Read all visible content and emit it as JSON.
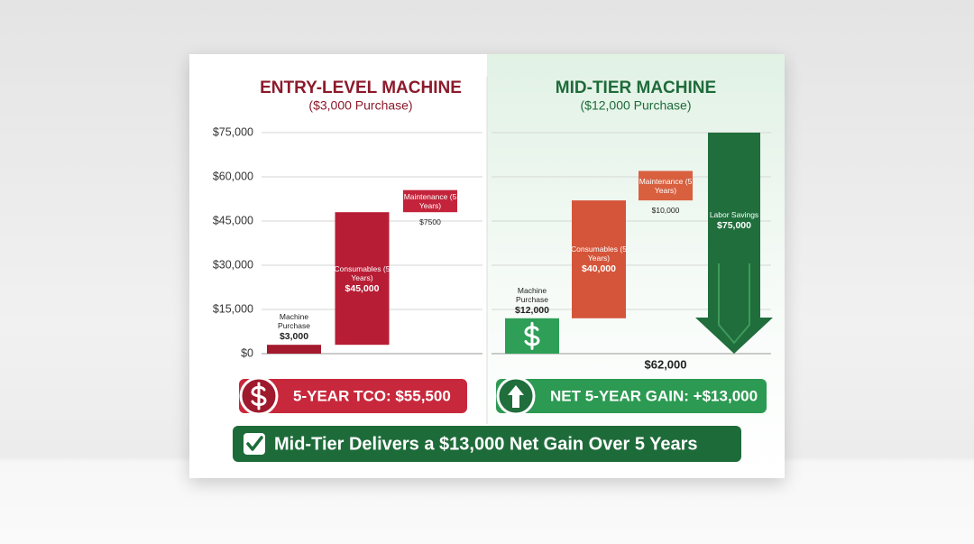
{
  "chart_data": [
    {
      "type": "waterfall",
      "title": "ENTRY-LEVEL MACHINE",
      "subtitle": "($3,000 Purchase)",
      "title_color": "#8b1a2b",
      "categories": [
        "Machine Purchase",
        "Consumables (5 Years)",
        "Maintenance (5 Years)"
      ],
      "values": [
        3000,
        45000,
        7500
      ],
      "value_labels": [
        "$3,000",
        "$45,000",
        "$7500"
      ],
      "colors": [
        "#a3192d",
        "#b81d36",
        "#c3243b"
      ],
      "ylim": [
        0,
        75000
      ],
      "yticks": [
        {
          "value": 0,
          "label": "$0"
        },
        {
          "value": 15000,
          "label": "$15,000"
        },
        {
          "value": 30000,
          "label": "$30,000"
        },
        {
          "value": 45000,
          "label": "$45,000"
        },
        {
          "value": 60000,
          "label": "$60,000"
        },
        {
          "value": 75000,
          "label": "$75,000"
        }
      ],
      "grid": true,
      "summary": "5-YEAR TCO: $55,500",
      "summary_color": "#c8283c"
    },
    {
      "type": "waterfall",
      "title": "MID-TIER MACHINE",
      "subtitle": "($12,000 Purchase)",
      "title_color": "#1e6b3a",
      "categories": [
        "Machine Purchase",
        "Consumables (5 Years)",
        "Maintenance (5 Years)"
      ],
      "values": [
        12000,
        40000,
        10000
      ],
      "value_labels": [
        "$12,000",
        "$40,000",
        "$10,000"
      ],
      "colors": [
        "#2f9e57",
        "#d4553a",
        "#d8603f"
      ],
      "savings": {
        "name": "Labor Savings",
        "value": 75000,
        "value_label": "$75,000",
        "color": "#1f6e3c"
      },
      "cost_total_label": "$62,000",
      "ylim": [
        0,
        75000
      ],
      "grid": true,
      "summary": "NET 5-YEAR GAIN: +$13,000",
      "summary_color": "#2c9a52"
    }
  ],
  "banner": {
    "text": "Mid-Tier Delivers a $13,000 Net Gain Over 5 Years",
    "color": "#1e6b3a"
  }
}
